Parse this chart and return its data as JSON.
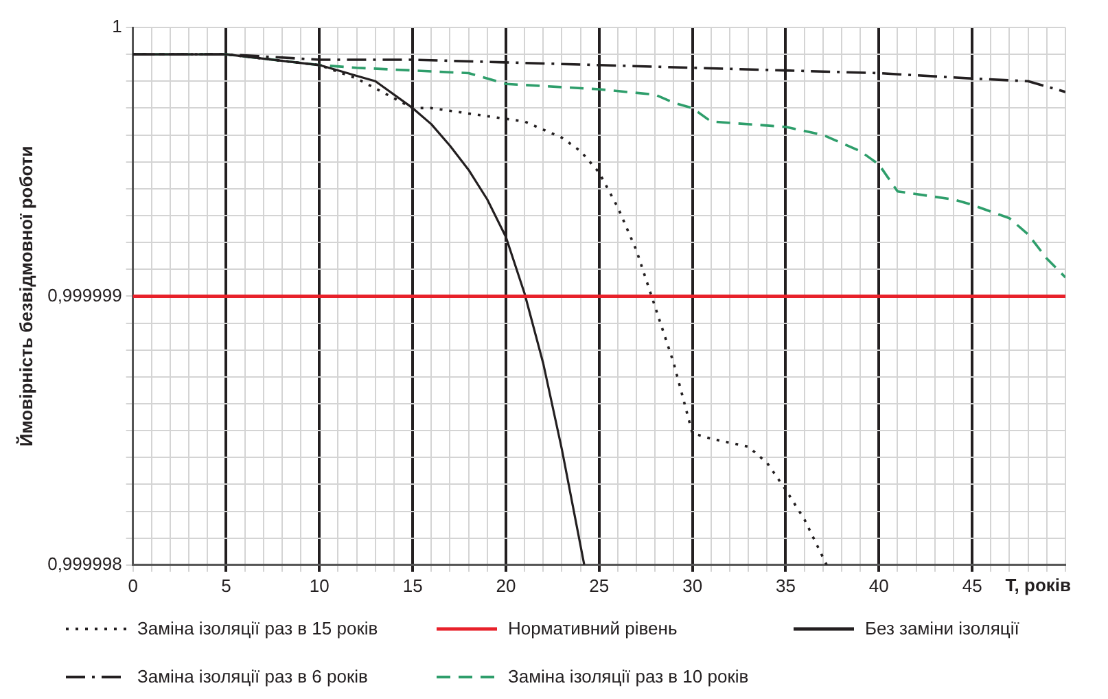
{
  "chart_data": {
    "type": "line",
    "xlabel": "T, років",
    "ylabel": "Ймовірність безвідмовної роботи",
    "xlim": [
      0,
      50
    ],
    "ylim": [
      0.999998,
      1
    ],
    "xticks": [
      0,
      {
        "value": 1,
        "label": null
      },
      {
        "value": 2,
        "label": null
      },
      {
        "value": 3,
        "label": null
      },
      {
        "value": 4,
        "label": null
      },
      5,
      {
        "value": 6,
        "label": null
      },
      {
        "value": 7,
        "label": null
      },
      {
        "value": 8,
        "label": null
      },
      {
        "value": 9,
        "label": null
      },
      10,
      {
        "value": 11,
        "label": null
      },
      {
        "value": 12,
        "label": null
      },
      {
        "value": 13,
        "label": null
      },
      {
        "value": 14,
        "label": null
      },
      15,
      {
        "value": 16,
        "label": null
      },
      {
        "value": 17,
        "label": null
      },
      {
        "value": 18,
        "label": null
      },
      {
        "value": 19,
        "label": null
      },
      20,
      {
        "value": 21,
        "label": null
      },
      {
        "value": 22,
        "label": null
      },
      {
        "value": 23,
        "label": null
      },
      {
        "value": 24,
        "label": null
      },
      25,
      {
        "value": 26,
        "label": null
      },
      {
        "value": 27,
        "label": null
      },
      {
        "value": 28,
        "label": null
      },
      {
        "value": 29,
        "label": null
      },
      30,
      {
        "value": 31,
        "label": null
      },
      {
        "value": 32,
        "label": null
      },
      {
        "value": 33,
        "label": null
      },
      {
        "value": 34,
        "label": null
      },
      35,
      {
        "value": 36,
        "label": null
      },
      {
        "value": 37,
        "label": null
      },
      {
        "value": 38,
        "label": null
      },
      {
        "value": 39,
        "label": null
      },
      40,
      {
        "value": 41,
        "label": null
      },
      {
        "value": 42,
        "label": null
      },
      {
        "value": 43,
        "label": null
      },
      {
        "value": 44,
        "label": null
      },
      45,
      {
        "value": 46,
        "label": null
      },
      {
        "value": 47,
        "label": null
      },
      {
        "value": 48,
        "label": null
      },
      {
        "value": 49,
        "label": null
      },
      {
        "value": 50,
        "label": null
      }
    ],
    "yticks": [
      {
        "value": 0.999998,
        "label": "0,999998"
      },
      {
        "value": 0.9999981,
        "label": null
      },
      {
        "value": 0.9999982,
        "label": null
      },
      {
        "value": 0.9999983,
        "label": null
      },
      {
        "value": 0.9999984,
        "label": null
      },
      {
        "value": 0.9999985,
        "label": null
      },
      {
        "value": 0.9999986,
        "label": null
      },
      {
        "value": 0.9999987,
        "label": null
      },
      {
        "value": 0.9999988,
        "label": null
      },
      {
        "value": 0.9999989,
        "label": null
      },
      {
        "value": 0.999999,
        "label": "0,999999"
      },
      {
        "value": 0.9999991,
        "label": null
      },
      {
        "value": 0.9999992,
        "label": null
      },
      {
        "value": 0.9999993,
        "label": null
      },
      {
        "value": 0.9999994,
        "label": null
      },
      {
        "value": 0.9999995,
        "label": null
      },
      {
        "value": 0.9999996,
        "label": null
      },
      {
        "value": 0.9999997,
        "label": null
      },
      {
        "value": 0.9999998,
        "label": null
      },
      {
        "value": 0.9999999,
        "label": null
      },
      1
    ],
    "grid": true,
    "legend": "bottom",
    "series": [
      {
        "name": "Заміна ізоляції раз в 15 років",
        "color": "#231f20",
        "line_style": "dotted",
        "x": [
          0,
          5,
          10,
          12,
          15,
          16,
          20,
          21,
          23,
          24,
          25,
          26,
          27,
          28,
          29,
          30,
          31,
          33,
          34,
          35,
          36,
          37.2
        ],
        "values": [
          0.9999999,
          0.9999999,
          0.99999986,
          0.99999981,
          0.9999997,
          0.9999997,
          0.99999966,
          0.99999965,
          0.99999959,
          0.99999954,
          0.99999946,
          0.99999933,
          0.99999917,
          0.99999896,
          0.99999875,
          0.99999849,
          0.99999847,
          0.99999844,
          0.99999838,
          0.99999828,
          0.99999817,
          0.999998
        ]
      },
      {
        "name": "Без заміни ізоляції",
        "color": "#231f20",
        "line_style": "solid",
        "x": [
          0,
          5,
          10,
          12,
          13,
          15,
          16,
          17,
          18,
          19,
          20,
          21,
          22,
          23,
          24.2
        ],
        "values": [
          0.9999999,
          0.9999999,
          0.99999986,
          0.99999982,
          0.9999998,
          0.9999997,
          0.99999964,
          0.99999956,
          0.99999947,
          0.99999936,
          0.99999922,
          0.99999901,
          0.99999875,
          0.99999843,
          0.999998
        ]
      },
      {
        "name": "Заміна ізоляції раз в 6 років",
        "color": "#231f20",
        "line_style": "dashdot",
        "x": [
          0,
          5,
          10,
          15,
          20,
          25,
          30,
          35,
          40,
          45,
          48,
          50
        ],
        "values": [
          0.9999999,
          0.9999999,
          0.99999988,
          0.99999988,
          0.99999987,
          0.99999986,
          0.99999985,
          0.99999984,
          0.99999983,
          0.99999981,
          0.9999998,
          0.99999976
        ]
      },
      {
        "name": "Заміна ізоляції раз в 10 років",
        "color": "#2e9e6b",
        "line_style": "dashed",
        "x": [
          0,
          5,
          10,
          12,
          15,
          18,
          20,
          25,
          28,
          29,
          30,
          31,
          35,
          37,
          39,
          40,
          41,
          44,
          45,
          47,
          48,
          49,
          50
        ],
        "values": [
          0.9999999,
          0.9999999,
          0.99999986,
          0.99999985,
          0.99999984,
          0.99999983,
          0.99999979,
          0.99999977,
          0.99999975,
          0.99999972,
          0.9999997,
          0.99999965,
          0.99999963,
          0.9999996,
          0.99999954,
          0.99999949,
          0.99999939,
          0.99999936,
          0.99999934,
          0.99999929,
          0.99999923,
          0.99999914,
          0.99999907
        ]
      }
    ],
    "ref_lines": [
      {
        "axis": "y",
        "value": 0.999999,
        "label": "Нормативний рівень",
        "color": "#e8212a",
        "line_style": "solid"
      }
    ]
  }
}
